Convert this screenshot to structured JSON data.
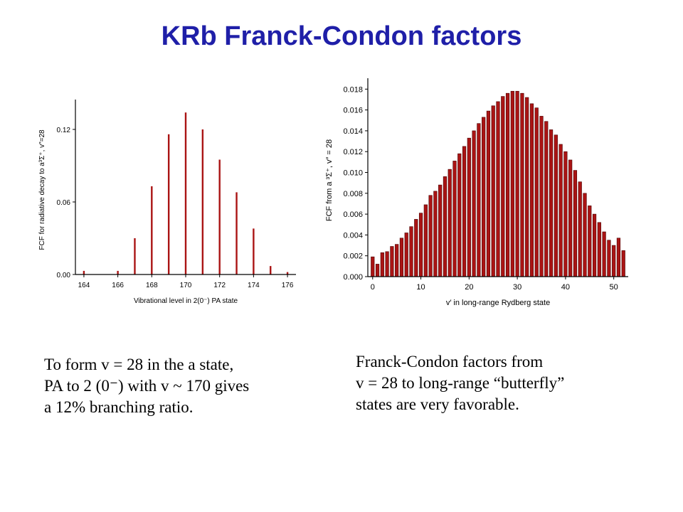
{
  "title": "KRb Franck-Condon factors",
  "colors": {
    "title": "#1f1fa8",
    "bar": "#aa1414",
    "bar_edge": "#4a0000",
    "axis": "#000000"
  },
  "chart_data": [
    {
      "type": "bar",
      "style": "stick",
      "xlabel": "Vibrational level in 2(0⁻) PA state",
      "ylabel": "FCF for radiative decay to a³Σ⁺, v″=28",
      "xlim": [
        163.5,
        176.5
      ],
      "ylim": [
        0,
        0.14
      ],
      "xticks": [
        164,
        166,
        168,
        170,
        172,
        174,
        176
      ],
      "yticks": [
        0.0,
        0.06,
        0.12
      ],
      "ytick_labels": [
        "0.00",
        "0.06",
        "0.12"
      ],
      "x": [
        164,
        166,
        167,
        168,
        169,
        170,
        171,
        172,
        173,
        174,
        175,
        176
      ],
      "values": [
        0.003,
        0.003,
        0.03,
        0.073,
        0.116,
        0.134,
        0.12,
        0.095,
        0.068,
        0.038,
        0.007,
        0.002
      ],
      "grid": false
    },
    {
      "type": "bar",
      "xlabel": "v′ in long-range Rydberg state",
      "ylabel": "FCF from a ³Σ⁺, v″ = 28",
      "xlim": [
        -1,
        53
      ],
      "ylim": [
        0,
        0.0185
      ],
      "xticks": [
        0,
        10,
        20,
        30,
        40,
        50
      ],
      "yticks": [
        0,
        0.002,
        0.004,
        0.006,
        0.008,
        0.01,
        0.012,
        0.014,
        0.016,
        0.018
      ],
      "ytick_labels": [
        "0.000",
        "0.002",
        "0.004",
        "0.006",
        "0.008",
        "0.010",
        "0.012",
        "0.014",
        "0.016",
        "0.018"
      ],
      "x": [
        0,
        1,
        2,
        3,
        4,
        5,
        6,
        7,
        8,
        9,
        10,
        11,
        12,
        13,
        14,
        15,
        16,
        17,
        18,
        19,
        20,
        21,
        22,
        23,
        24,
        25,
        26,
        27,
        28,
        29,
        30,
        31,
        32,
        33,
        34,
        35,
        36,
        37,
        38,
        39,
        40,
        41,
        42,
        43,
        44,
        45,
        46,
        47,
        48,
        49,
        50,
        51,
        52
      ],
      "values": [
        0.0019,
        0.0012,
        0.0023,
        0.0024,
        0.0029,
        0.0031,
        0.0037,
        0.0042,
        0.0048,
        0.0055,
        0.0061,
        0.0069,
        0.0078,
        0.0082,
        0.0088,
        0.0096,
        0.0103,
        0.0111,
        0.0118,
        0.0125,
        0.0133,
        0.014,
        0.0147,
        0.0153,
        0.0159,
        0.0164,
        0.0168,
        0.0173,
        0.0176,
        0.0178,
        0.0178,
        0.0176,
        0.0172,
        0.0166,
        0.0162,
        0.0154,
        0.0149,
        0.0141,
        0.0136,
        0.0127,
        0.012,
        0.0112,
        0.0102,
        0.0091,
        0.008,
        0.0068,
        0.006,
        0.0052,
        0.0043,
        0.0035,
        0.003,
        0.0037,
        0.0025
      ],
      "grid": false
    }
  ],
  "text_left": {
    "line1": "To form v = 28 in the a state,",
    "line2": "PA to 2 (0⁻) with v ~ 170 gives",
    "line3": "a 12% branching ratio."
  },
  "text_right": {
    "line1": "Franck-Condon factors from",
    "line2": "v = 28 to long-range “butterfly”",
    "line3": "states are very favorable."
  }
}
